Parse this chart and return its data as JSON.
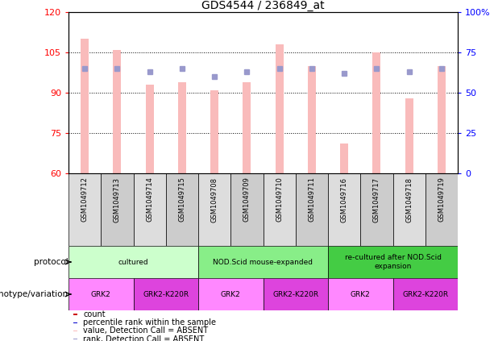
{
  "title": "GDS4544 / 236849_at",
  "samples": [
    "GSM1049712",
    "GSM1049713",
    "GSM1049714",
    "GSM1049715",
    "GSM1049708",
    "GSM1049709",
    "GSM1049710",
    "GSM1049711",
    "GSM1049716",
    "GSM1049717",
    "GSM1049718",
    "GSM1049719"
  ],
  "bar_values": [
    110,
    106,
    93,
    94,
    91,
    94,
    108,
    100,
    71,
    105,
    88,
    100
  ],
  "rank_values": [
    65,
    65,
    63,
    65,
    60,
    63,
    65,
    65,
    62,
    65,
    63,
    65
  ],
  "ylim_left": [
    60,
    120
  ],
  "ylim_right": [
    0,
    100
  ],
  "yticks_left": [
    60,
    75,
    90,
    105,
    120
  ],
  "yticks_right": [
    0,
    25,
    50,
    75,
    100
  ],
  "ytick_labels_right": [
    "0",
    "25",
    "50",
    "75",
    "100%"
  ],
  "bar_color": "#F9BBBB",
  "rank_color": "#9999CC",
  "bar_width": 0.25,
  "protocol_groups": [
    {
      "label": "cultured",
      "start": 0,
      "end": 4,
      "color": "#CCFFCC"
    },
    {
      "label": "NOD.Scid mouse-expanded",
      "start": 4,
      "end": 8,
      "color": "#88EE88"
    },
    {
      "label": "re-cultured after NOD.Scid\nexpansion",
      "start": 8,
      "end": 12,
      "color": "#44CC44"
    }
  ],
  "genotype_groups": [
    {
      "label": "GRK2",
      "start": 0,
      "end": 2,
      "color": "#FF88FF"
    },
    {
      "label": "GRK2-K220R",
      "start": 2,
      "end": 4,
      "color": "#DD44DD"
    },
    {
      "label": "GRK2",
      "start": 4,
      "end": 6,
      "color": "#FF88FF"
    },
    {
      "label": "GRK2-K220R",
      "start": 6,
      "end": 8,
      "color": "#DD44DD"
    },
    {
      "label": "GRK2",
      "start": 8,
      "end": 10,
      "color": "#FF88FF"
    },
    {
      "label": "GRK2-K220R",
      "start": 10,
      "end": 12,
      "color": "#DD44DD"
    }
  ],
  "legend_items": [
    {
      "label": "count",
      "color": "#CC0000"
    },
    {
      "label": "percentile rank within the sample",
      "color": "#0000CC"
    },
    {
      "label": "value, Detection Call = ABSENT",
      "color": "#F9BBBB"
    },
    {
      "label": "rank, Detection Call = ABSENT",
      "color": "#9999CC"
    }
  ],
  "sample_col_colors": [
    "#DDDDDD",
    "#CCCCCC"
  ]
}
